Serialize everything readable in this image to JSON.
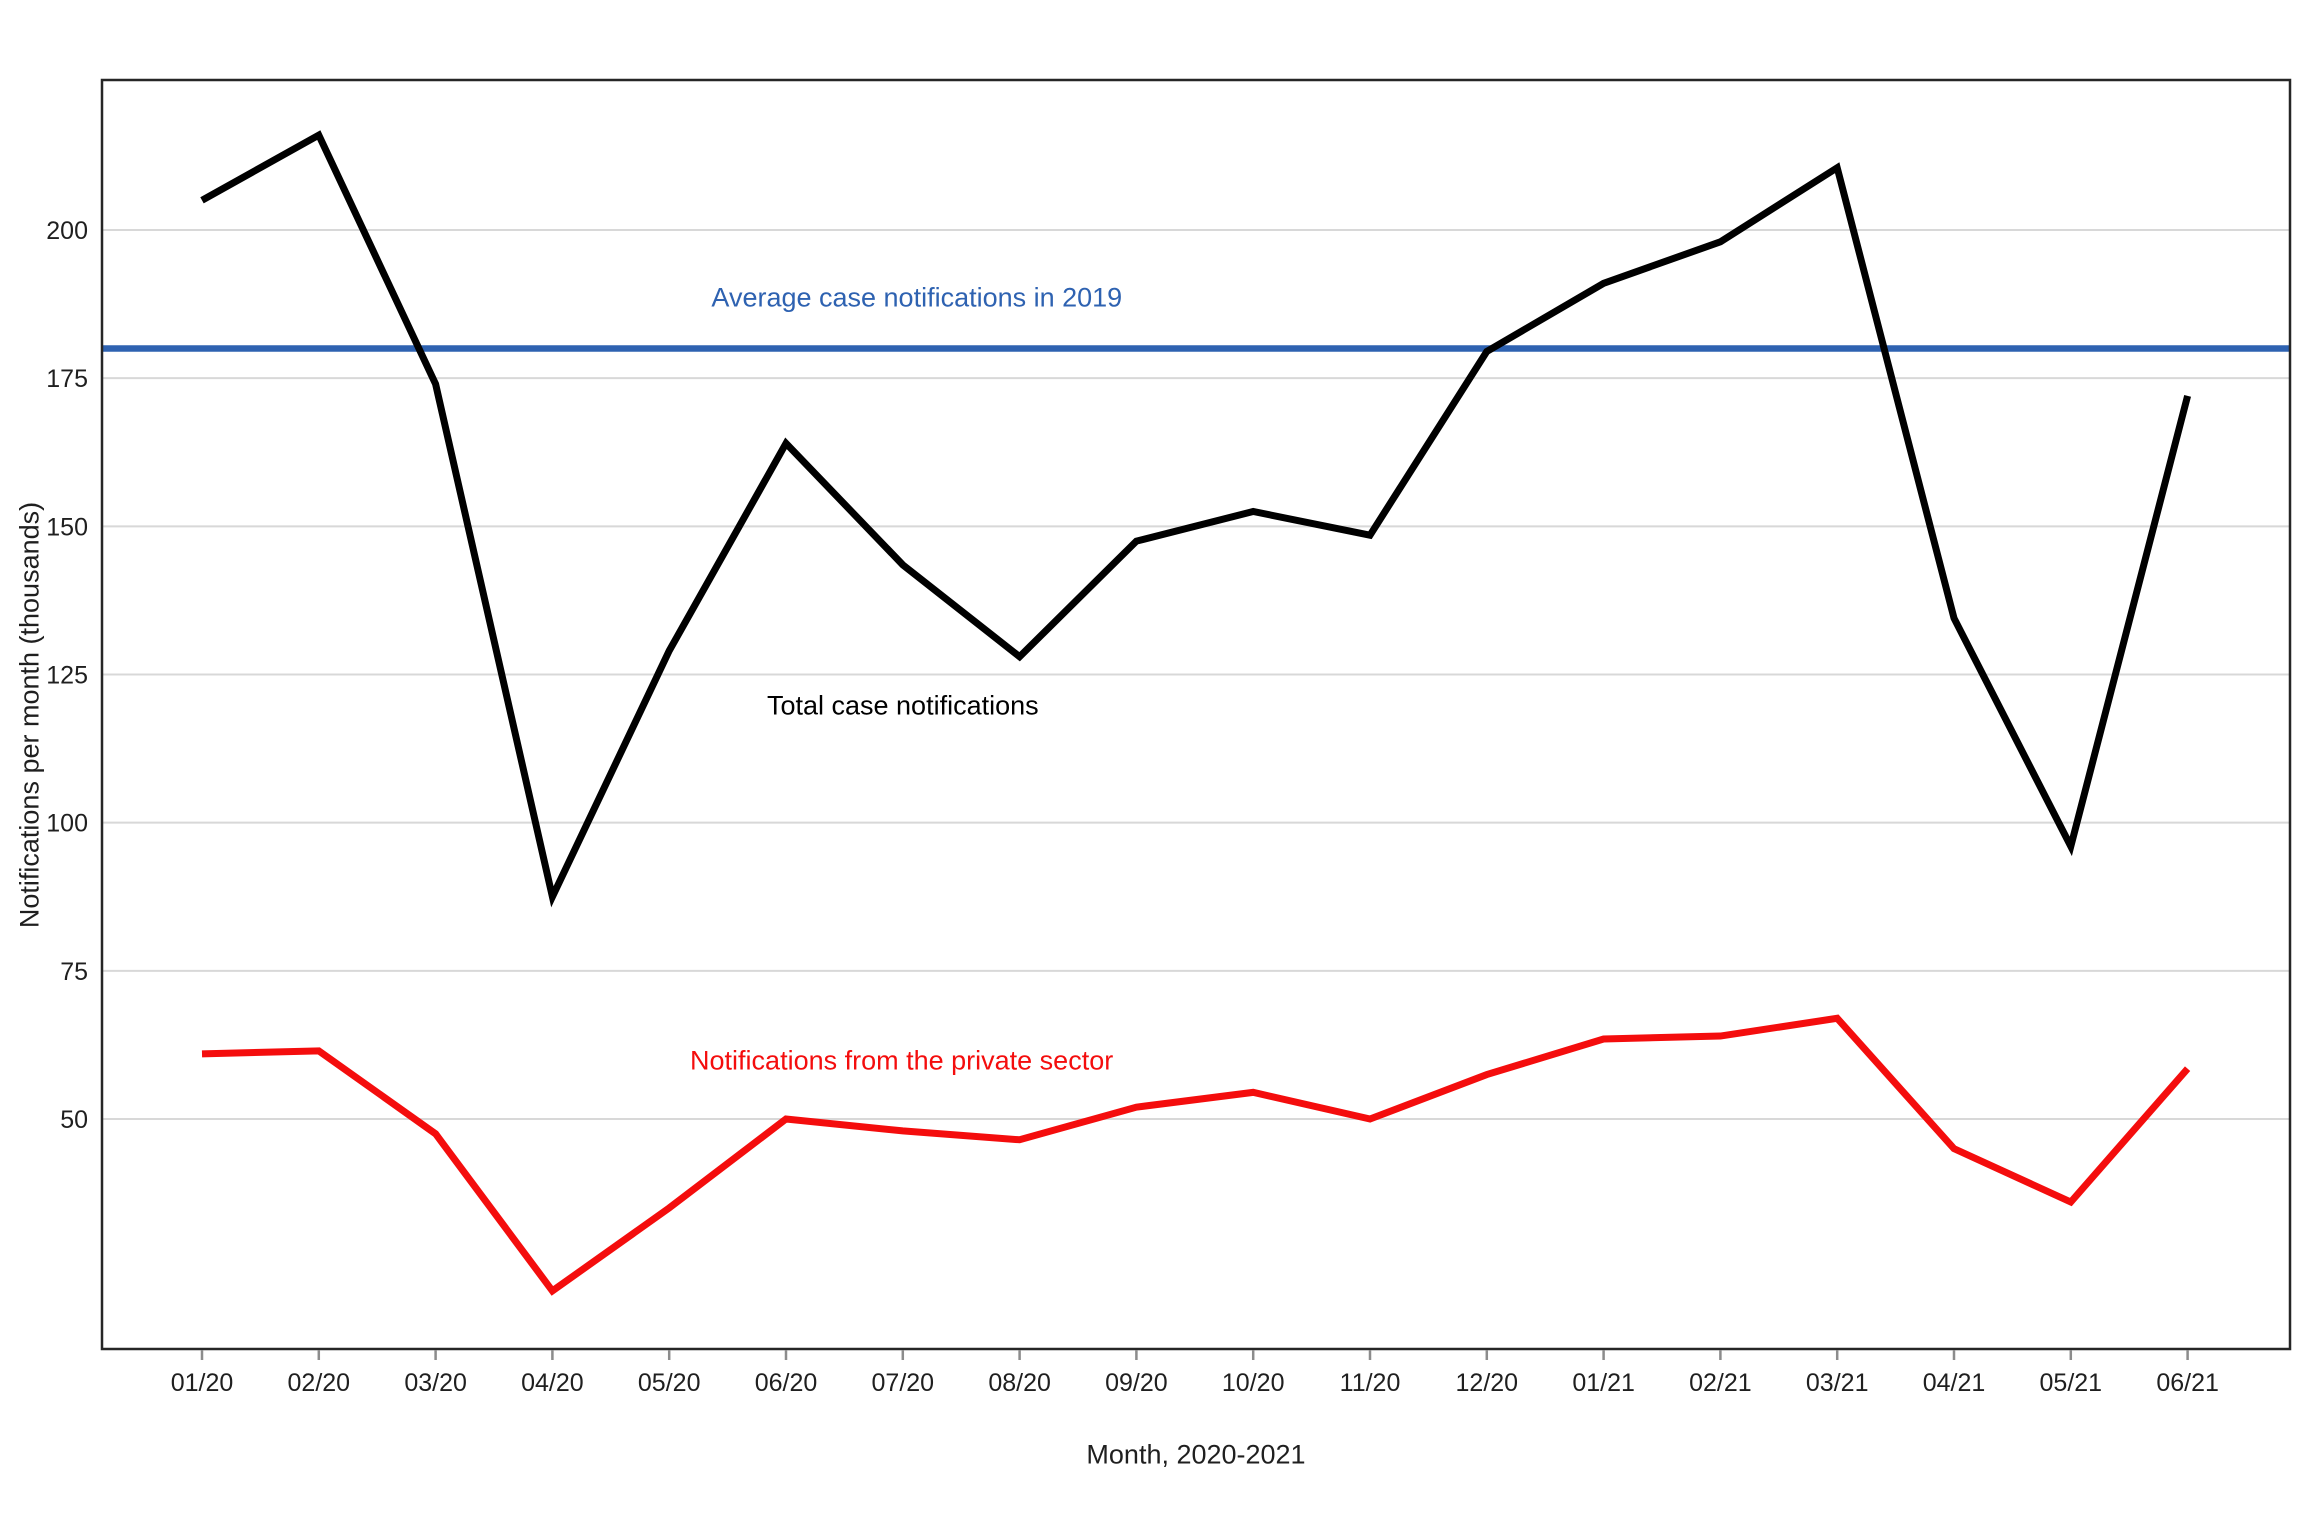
{
  "chart_data": {
    "type": "line",
    "title": "",
    "xlabel": "Month, 2020-2021",
    "ylabel": "Notifications per month (thousands)",
    "categories": [
      "01/20",
      "02/20",
      "03/20",
      "04/20",
      "05/20",
      "06/20",
      "07/20",
      "08/20",
      "09/20",
      "10/20",
      "11/20",
      "12/20",
      "01/21",
      "02/21",
      "03/21",
      "04/21",
      "05/21",
      "06/21"
    ],
    "y_ticks": [
      50,
      75,
      100,
      125,
      150,
      175,
      200
    ],
    "ylim": [
      11.2,
      225.3
    ],
    "grid": "horizontal-only",
    "legend_position": "none",
    "reference_line": {
      "value": 180,
      "color": "#2E62B1"
    },
    "series": [
      {
        "name": "Total case notifications",
        "color": "#000000",
        "values": [
          205,
          216,
          174,
          87.5,
          129,
          164,
          143.5,
          128,
          147.5,
          152.5,
          148.5,
          179.5,
          191,
          198,
          210.5,
          134.5,
          96,
          172
        ]
      },
      {
        "name": "Notifications from the private sector",
        "color": "#F40D0D",
        "values": [
          61,
          61.5,
          47.5,
          21,
          35,
          50,
          48,
          46.5,
          52,
          54.5,
          50,
          57.5,
          63.5,
          64,
          67,
          45,
          36,
          58.5
        ]
      }
    ],
    "annotations": [
      {
        "text": "Average case notifications in 2019",
        "x_index": 6.12,
        "y_value": 188.5,
        "color": "#2E62B1"
      },
      {
        "text": "Total case notifications",
        "x_index": 6.0,
        "y_value": 119.7,
        "color": "#000000"
      },
      {
        "text": "Notifications from the private sector",
        "x_index": 5.99,
        "y_value": 59.8,
        "color": "#F40D0D"
      }
    ],
    "style": {
      "grid_color": "#D8D8D8",
      "axis_box_color": "#262626",
      "tick_mark_color": "#8C8C8C",
      "tick_label_color": "#1F1F1F",
      "background": "#FFFFFF"
    }
  }
}
